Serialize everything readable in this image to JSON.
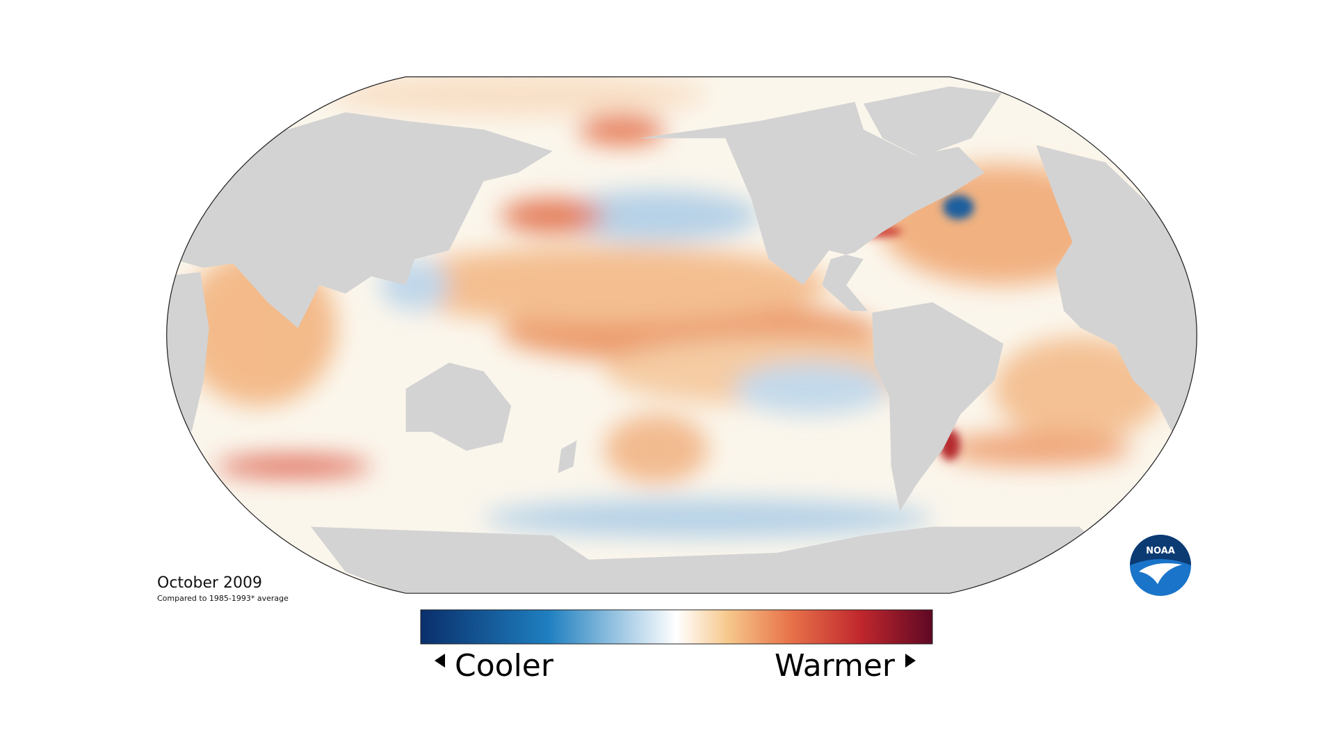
{
  "map": {
    "title": "October 2009",
    "subtitle": "Compared to 1985-1993* average"
  },
  "legend": {
    "low": "Cooler",
    "high": "Warmer"
  },
  "logo": {
    "label": "NOAA"
  }
}
